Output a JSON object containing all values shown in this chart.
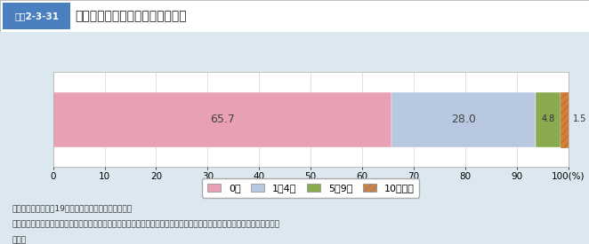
{
  "title_label": "近所に生活面で協力し合う人の数",
  "title_tag": "図表2-3-31",
  "values": [
    65.7,
    28.0,
    4.8,
    1.5
  ],
  "labels": [
    "0人",
    "1～4人",
    "5～9人",
    "10人以上"
  ],
  "bar_colors": [
    "#e8a0b4",
    "#b8c8e0",
    "#8aaa50",
    "#d4803a"
  ],
  "background_color": "#dce8f0",
  "bar_area_bg": "#ffffff",
  "xlim": [
    0,
    100
  ],
  "xticks": [
    0,
    10,
    20,
    30,
    40,
    50,
    60,
    70,
    80,
    90,
    100
  ],
  "note_line1": "資料：内閣府「平成19年版国民生活白書」により作成",
  "note_line2": "（注）「生活面で協力し合う人」とは、お互いに相談したり日用品の貸し借りをするなど、生活面で協力しあっている人であ",
  "note_line3": "　る。",
  "hatch_pattern": "////",
  "tag_color": "#4a7fc0",
  "title_bg": "#ffffff"
}
